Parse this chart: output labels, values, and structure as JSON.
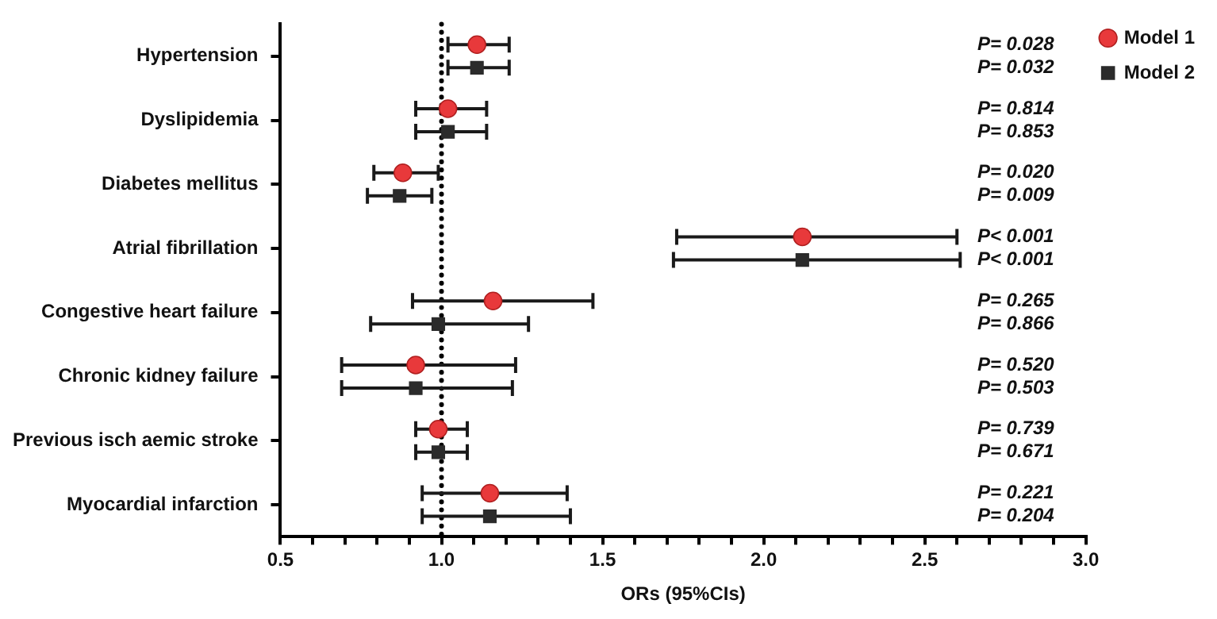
{
  "chart_data": {
    "type": "scatter",
    "orientation": "horizontal",
    "xlabel": "ORs (95%CIs)",
    "categories": [
      "Hypertension",
      "Dyslipidemia",
      "Diabetes mellitus",
      "Atrial fibrillation",
      "Congestive heart failure",
      "Chronic kidney failure",
      "Previous isch aemic stroke",
      "Myocardial infarction"
    ],
    "series": [
      {
        "name": "Model 1",
        "color": "#e8393b",
        "marker": "circle",
        "values": [
          1.11,
          1.02,
          0.88,
          2.12,
          1.16,
          0.92,
          0.99,
          1.15
        ],
        "errors": [
          [
            1.02,
            1.21
          ],
          [
            0.92,
            1.14
          ],
          [
            0.79,
            0.99
          ],
          [
            1.73,
            2.6
          ],
          [
            0.91,
            1.47
          ],
          [
            0.69,
            1.23
          ],
          [
            0.92,
            1.08
          ],
          [
            0.94,
            1.39
          ]
        ]
      },
      {
        "name": "Model 2",
        "color": "#2b2b2b",
        "marker": "square",
        "values": [
          1.11,
          1.02,
          0.87,
          2.12,
          0.99,
          0.92,
          0.99,
          1.15
        ],
        "errors": [
          [
            1.02,
            1.21
          ],
          [
            0.92,
            1.14
          ],
          [
            0.77,
            0.97
          ],
          [
            1.72,
            2.61
          ],
          [
            0.78,
            1.27
          ],
          [
            0.69,
            1.22
          ],
          [
            0.92,
            1.08
          ],
          [
            0.94,
            1.4
          ]
        ]
      }
    ],
    "xlim": [
      0.5,
      3.0
    ],
    "xticks": [
      {
        "value": 0.5,
        "label": "0.5"
      },
      {
        "value": 0.6,
        "label": null
      },
      {
        "value": 0.7,
        "label": null
      },
      {
        "value": 0.8,
        "label": null
      },
      {
        "value": 0.9,
        "label": null
      },
      {
        "value": 1,
        "label": "1.0"
      },
      {
        "value": 1.1,
        "label": null
      },
      {
        "value": 1.2,
        "label": null
      },
      {
        "value": 1.3,
        "label": null
      },
      {
        "value": 1.4,
        "label": null
      },
      {
        "value": 1.5,
        "label": "1.5"
      },
      {
        "value": 1.6,
        "label": null
      },
      {
        "value": 1.7,
        "label": null
      },
      {
        "value": 1.8,
        "label": null
      },
      {
        "value": 1.9,
        "label": null
      },
      {
        "value": 2,
        "label": "2.0"
      },
      {
        "value": 2.1,
        "label": null
      },
      {
        "value": 2.2,
        "label": null
      },
      {
        "value": 2.3,
        "label": null
      },
      {
        "value": 2.4,
        "label": null
      },
      {
        "value": 2.5,
        "label": "2.5"
      },
      {
        "value": 2.6,
        "label": null
      },
      {
        "value": 2.7,
        "label": null
      },
      {
        "value": 2.8,
        "label": null
      },
      {
        "value": 2.9,
        "label": null
      },
      {
        "value": 3,
        "label": "3.0"
      }
    ],
    "ref_lines": [
      {
        "axis": "x",
        "value": 1,
        "color": "#000000",
        "line_style": "dotted"
      }
    ],
    "annotations": [
      "P= 0.028",
      "P= 0.032",
      "P= 0.814",
      "P= 0.853",
      "P= 0.020",
      "P= 0.009",
      "P< 0.001",
      "P< 0.001",
      "P= 0.265",
      "P= 0.866",
      "P= 0.520",
      "P= 0.503",
      "P= 0.739",
      "P= 0.671",
      "P= 0.221",
      "P= 0.204"
    ],
    "grid": false,
    "legend": "top right"
  }
}
